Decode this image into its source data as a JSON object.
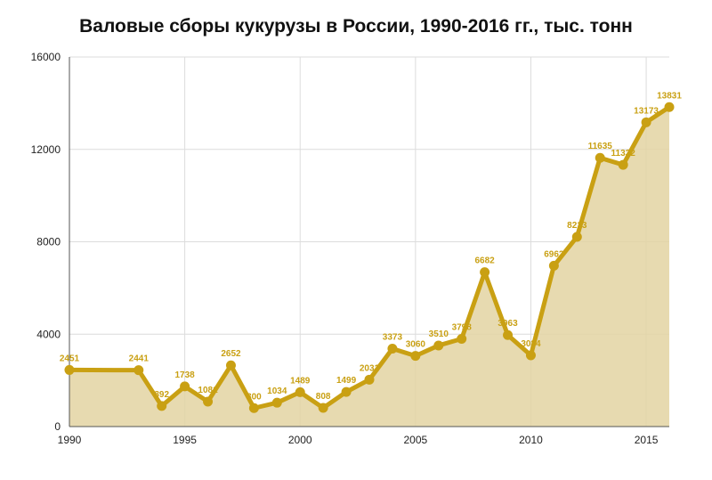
{
  "chart_data": {
    "type": "line",
    "title": "Валовые сборы кукурузы в России, 1990-2016 гг., тыс. тонн",
    "xlabel": "",
    "ylabel": "",
    "xlim": [
      1990,
      2016
    ],
    "ylim": [
      0,
      16000
    ],
    "grid": true,
    "x_ticks": [
      1990,
      1995,
      2000,
      2005,
      2010,
      2015
    ],
    "y_ticks": [
      0,
      4000,
      8000,
      12000,
      16000
    ],
    "series": [
      {
        "points": [
          {
            "x": 1990,
            "y": 2451
          },
          {
            "x": 1993,
            "y": 2441
          },
          {
            "x": 1994,
            "y": 892
          },
          {
            "x": 1995,
            "y": 1738
          },
          {
            "x": 1996,
            "y": 1081
          },
          {
            "x": 1997,
            "y": 2652
          },
          {
            "x": 1998,
            "y": 800
          },
          {
            "x": 1999,
            "y": 1034
          },
          {
            "x": 2000,
            "y": 1489
          },
          {
            "x": 2001,
            "y": 808
          },
          {
            "x": 2002,
            "y": 1499
          },
          {
            "x": 2003,
            "y": 2031
          },
          {
            "x": 2004,
            "y": 3373
          },
          {
            "x": 2005,
            "y": 3060
          },
          {
            "x": 2006,
            "y": 3510
          },
          {
            "x": 2007,
            "y": 3798
          },
          {
            "x": 2008,
            "y": 6682
          },
          {
            "x": 2009,
            "y": 3963
          },
          {
            "x": 2010,
            "y": 3084
          },
          {
            "x": 2011,
            "y": 6962
          },
          {
            "x": 2012,
            "y": 8213
          },
          {
            "x": 2013,
            "y": 11635
          },
          {
            "x": 2014,
            "y": 11332
          },
          {
            "x": 2015,
            "y": 13173
          },
          {
            "x": 2016,
            "y": 13831
          }
        ]
      }
    ],
    "colors": {
      "line": "#C9A013",
      "area_fill": "#E3D3A2",
      "label": "#C9A013",
      "grid": "#dcdcdc",
      "axis": "#555555"
    }
  }
}
